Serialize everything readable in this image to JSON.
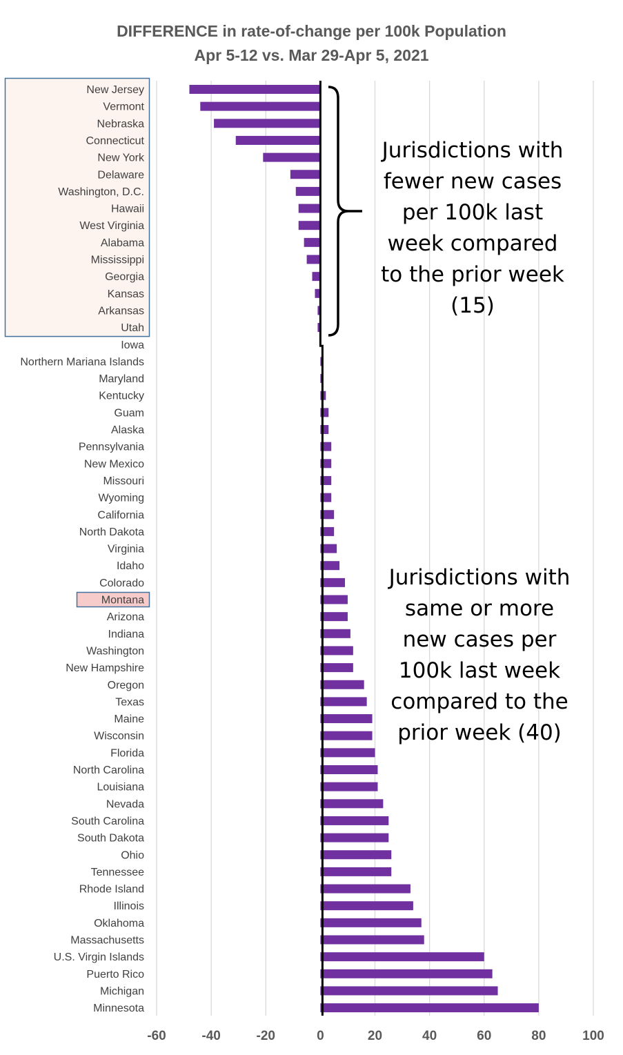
{
  "chart_data": {
    "type": "bar",
    "orientation": "horizontal",
    "title": "DIFFERENCE in rate-of-change per 100k Population",
    "subtitle": "Apr 5-12 vs. Mar 29-Apr 5, 2021",
    "xlabel": "",
    "ylabel": "",
    "xlim": [
      -60,
      100
    ],
    "x_ticks": [
      -60,
      -40,
      -20,
      0,
      20,
      40,
      60,
      80,
      100
    ],
    "grid": "vertical",
    "legend": "none",
    "colors": {
      "bar": "#7030A0",
      "grid": "#d9d9d9",
      "zero_line": "#000000",
      "highlight_box": "#41719C",
      "group_fill": "#fdf3ef",
      "montana_fill": "#f8cbcb"
    },
    "categories": [
      "New Jersey",
      "Vermont",
      "Nebraska",
      "Connecticut",
      "New York",
      "Delaware",
      "Washington, D.C.",
      "Hawaii",
      "West Virginia",
      "Alabama",
      "Mississippi",
      "Georgia",
      "Kansas",
      "Arkansas",
      "Utah",
      "Iowa",
      "Northern Mariana Islands",
      "Maryland",
      "Kentucky",
      "Guam",
      "Alaska",
      "Pennsylvania",
      "New Mexico",
      "Missouri",
      "Wyoming",
      "California",
      "North Dakota",
      "Virginia",
      "Idaho",
      "Colorado",
      "Montana",
      "Arizona",
      "Indiana",
      "Washington",
      "New Hampshire",
      "Oregon",
      "Texas",
      "Maine",
      "Wisconsin",
      "Florida",
      "North Carolina",
      "Louisiana",
      "Nevada",
      "South Carolina",
      "South Dakota",
      "Ohio",
      "Tennessee",
      "Rhode Island",
      "Illinois",
      "Oklahoma",
      "Massachusetts",
      "U.S. Virgin Islands",
      "Puerto Rico",
      "Michigan",
      "Minnesota"
    ],
    "values": [
      -48,
      -44,
      -39,
      -31,
      -21,
      -11,
      -9,
      -8,
      -8,
      -6,
      -5,
      -3,
      -2,
      -1,
      -1,
      0,
      1,
      1,
      2,
      3,
      3,
      4,
      4,
      4,
      4,
      5,
      5,
      6,
      7,
      9,
      10,
      10,
      11,
      12,
      12,
      16,
      17,
      19,
      19,
      20,
      21,
      21,
      23,
      25,
      25,
      26,
      26,
      33,
      34,
      37,
      38,
      60,
      63,
      65,
      80
    ],
    "highlighted_category": "Montana",
    "annotations": {
      "fewer": [
        "Jurisdictions with",
        "fewer new cases",
        "per 100k last",
        "week compared",
        "to the prior week",
        "(15)"
      ],
      "more": [
        "Jurisdictions with",
        "same or more",
        "new cases per",
        "100k last week",
        "compared to the",
        "prior week (40)"
      ]
    }
  }
}
